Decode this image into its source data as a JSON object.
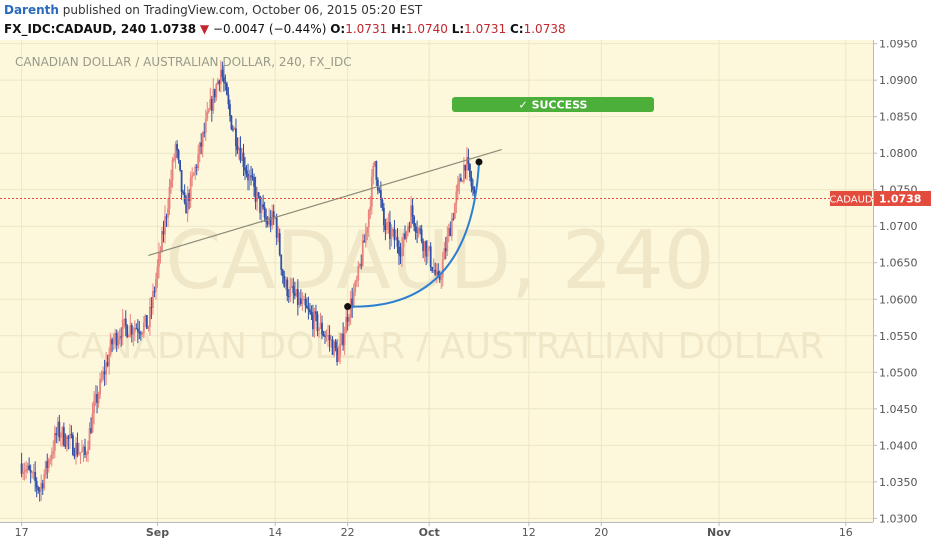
{
  "header": {
    "author": "Darenth",
    "published_text": "published on TradingView.com, October 06, 2015 05:20 EST",
    "symbol": "FX_IDC:CADAUD, 240",
    "last": "1.0738",
    "change_arrow": "▼",
    "change": "−0.0047 (−0.44%)",
    "o_label": "O:",
    "o_value": "1.0731",
    "h_label": "H:",
    "h_value": "1.0740",
    "l_label": "L:",
    "l_value": "1.0731",
    "c_label": "C:",
    "c_value": "1.0738"
  },
  "colors": {
    "background": "#fdf8dc",
    "up_candle": "#e8837e",
    "down_candle": "#2f4fa8",
    "grid": "#ece6c6",
    "trendline": "#8b8b7a",
    "arc": "#2f7fd1",
    "success_badge": "#4caf3a",
    "price_tag": "#e34b3c"
  },
  "chart_data": {
    "type": "candlestick",
    "title": "CANADIAN DOLLAR / AUSTRALIAN DOLLAR, 240, FX_IDC",
    "watermark_symbol": "CADAUD, 240",
    "watermark_name": "CANADIAN DOLLAR / AUSTRALIAN DOLLAR",
    "interval_minutes": 240,
    "ylim": [
      1.0295,
      1.0955
    ],
    "y_ticks": [
      "1.0950",
      "1.0900",
      "1.0850",
      "1.0800",
      "1.0750",
      "1.0700",
      "1.0650",
      "1.0600",
      "1.0550",
      "1.0500",
      "1.0450",
      "1.0400",
      "1.0350",
      "1.0300"
    ],
    "x_tick_labels": [
      {
        "date": "2015-08-17",
        "label": "17"
      },
      {
        "date": "2015-09-01",
        "label": "Sep"
      },
      {
        "date": "2015-09-14",
        "label": "14"
      },
      {
        "date": "2015-09-22",
        "label": "22"
      },
      {
        "date": "2015-10-01",
        "label": "Oct"
      },
      {
        "date": "2015-10-12",
        "label": "12"
      },
      {
        "date": "2015-10-20",
        "label": "20"
      },
      {
        "date": "2015-11-02",
        "label": "Nov"
      },
      {
        "date": "2015-11-16",
        "label": "16"
      }
    ],
    "price_path": [
      [
        "2015-08-17",
        1.0375
      ],
      [
        "2015-08-19",
        1.034
      ],
      [
        "2015-08-21",
        1.042
      ],
      [
        "2015-08-24",
        1.0385
      ],
      [
        "2015-08-25",
        1.045
      ],
      [
        "2015-08-27",
        1.054
      ],
      [
        "2015-08-28",
        1.056
      ],
      [
        "2015-08-31",
        1.0565
      ],
      [
        "2015-09-01",
        1.064
      ],
      [
        "2015-09-02",
        1.072
      ],
      [
        "2015-09-03",
        1.081
      ],
      [
        "2015-09-04",
        1.072
      ],
      [
        "2015-09-07",
        1.087
      ],
      [
        "2015-09-08",
        1.0915
      ],
      [
        "2015-09-09",
        1.085
      ],
      [
        "2015-09-11",
        1.077
      ],
      [
        "2015-09-13",
        1.0705
      ],
      [
        "2015-09-14",
        1.071
      ],
      [
        "2015-09-15",
        1.062
      ],
      [
        "2015-09-17",
        1.059
      ],
      [
        "2015-09-20",
        1.0545
      ],
      [
        "2015-09-21",
        1.052
      ],
      [
        "2015-09-22",
        1.058
      ],
      [
        "2015-09-23",
        1.062
      ],
      [
        "2015-09-24",
        1.069
      ],
      [
        "2015-09-25",
        1.079
      ],
      [
        "2015-09-26",
        1.07
      ],
      [
        "2015-09-28",
        1.067
      ],
      [
        "2015-09-29",
        1.072
      ],
      [
        "2015-10-01",
        1.066
      ],
      [
        "2015-10-02",
        1.062
      ],
      [
        "2015-10-03",
        1.068
      ],
      [
        "2015-10-04",
        1.074
      ],
      [
        "2015-10-05",
        1.079
      ],
      [
        "2015-10-06",
        1.0738
      ]
    ],
    "last_price": "1.0738",
    "last_price_tag_symbol": "CADAUD",
    "annotations": {
      "trendline": {
        "start": [
          "2015-08-31",
          1.066
        ],
        "end": [
          "2015-10-09",
          1.0805
        ]
      },
      "arc": {
        "start": [
          "2015-09-22",
          1.059
        ],
        "end": [
          "2015-10-06",
          1.0788
        ]
      },
      "success_label": "SUCCESS",
      "success_check": "✓"
    }
  }
}
